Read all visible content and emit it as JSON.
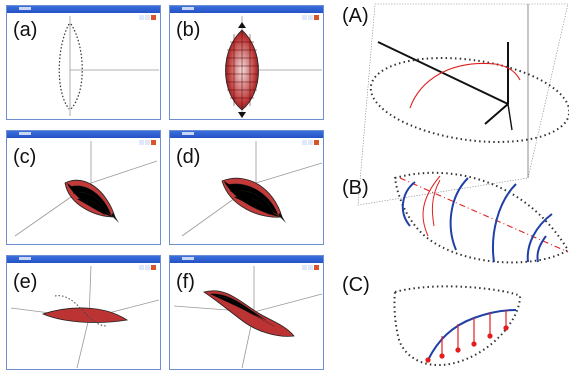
{
  "panels": {
    "a": {
      "label": "(a)"
    },
    "b": {
      "label": "(b)"
    },
    "c": {
      "label": "(c)"
    },
    "d": {
      "label": "(d)"
    },
    "e": {
      "label": "(e)"
    },
    "f": {
      "label": "(f)"
    },
    "A": {
      "label": "(A)"
    },
    "B": {
      "label": "(B)"
    },
    "C": {
      "label": "(C)"
    }
  },
  "colors": {
    "titlebar": "#2a5cd0",
    "red_curve": "#e02020",
    "blue_curve": "#2040a8",
    "dots": "#333333",
    "mesh": "#8b0000"
  }
}
